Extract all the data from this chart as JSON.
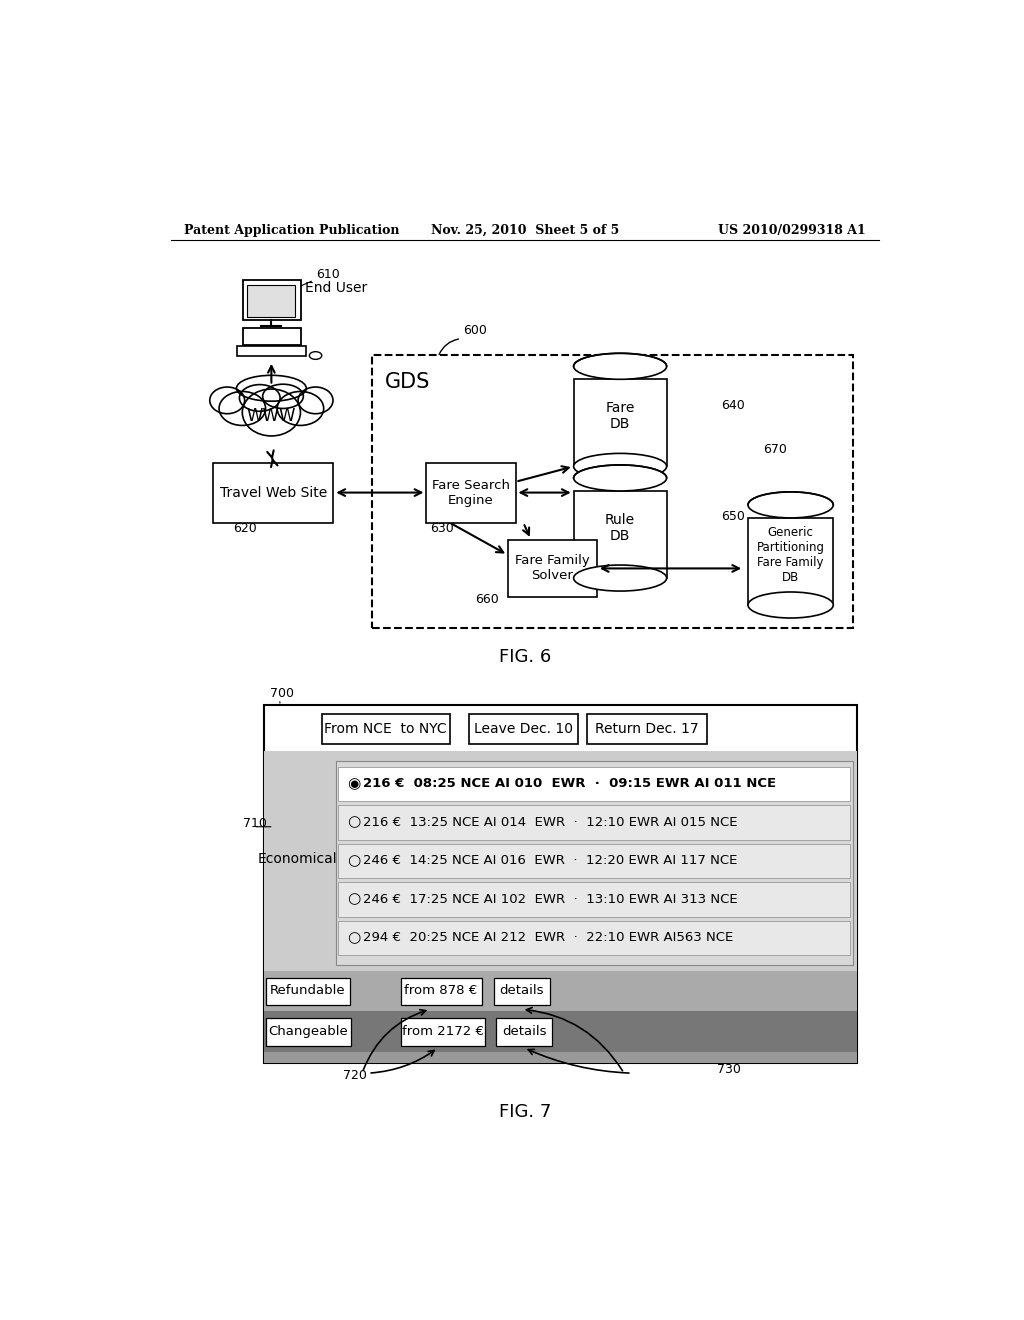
{
  "header_left": "Patent Application Publication",
  "header_middle": "Nov. 25, 2010  Sheet 5 of 5",
  "header_right": "US 2010/0299318 A1",
  "fig6_label": "FIG. 6",
  "fig7_label": "FIG. 7",
  "gds_label": "GDS",
  "ref_600": "600",
  "ref_610": "610",
  "ref_620": "620",
  "ref_630": "630",
  "ref_640": "640",
  "ref_650": "650",
  "ref_660": "660",
  "ref_670": "670",
  "ref_700": "700",
  "ref_710": "710",
  "ref_720": "720",
  "ref_730": "730",
  "end_user_label": "End User",
  "www_label": "WWW",
  "travel_web_site_label": "Travel Web Site",
  "fare_search_engine_label": "Fare Search\nEngine",
  "fare_db_label": "Fare\nDB",
  "rule_db_label": "Rule\nDB",
  "fare_family_solver_label": "Fare Family\nSolver",
  "generic_partitioning_label": "Generic\nPartitioning\nFare Family\nDB",
  "search_bar_text": "From NCE  to NYC",
  "leave_text": "Leave Dec. 10",
  "return_text": "Return Dec. 17",
  "flight_rows": [
    {
      "selected": true,
      "radio": "◉",
      "text": "216 €  08:25 NCE AI 010  EWR  ·  09:15 EWR AI 011 NCE"
    },
    {
      "selected": false,
      "radio": "○",
      "text": "216 €  13:25 NCE AI 014  EWR  ·  12:10 EWR AI 015 NCE"
    },
    {
      "selected": false,
      "radio": "○",
      "text": "246 €  14:25 NCE AI 016  EWR  ·  12:20 EWR AI 117 NCE"
    },
    {
      "selected": false,
      "radio": "○",
      "text": "246 €  17:25 NCE AI 102  EWR  ·  13:10 EWR AI 313 NCE"
    },
    {
      "selected": false,
      "radio": "○",
      "text": "294 €  20:25 NCE AI 212  EWR  ·  22:10 EWR AI563 NCE"
    }
  ],
  "economical_label": "Economical",
  "refundable_label": "Refundable",
  "refundable_price": "from 878 €",
  "refundable_details": "details",
  "changeable_label": "Changeable",
  "changeable_price": "from 2172 €",
  "changeable_details": "details",
  "bg_color": "#ffffff",
  "economical_bg": "#cccccc",
  "flight_panel_bg": "#d8d8d8",
  "flight_row_bg": "#e8e8e8",
  "flight_row_sel_bg": "#ffffff",
  "refundable_bg": "#aaaaaa",
  "changeable_bg": "#777777"
}
